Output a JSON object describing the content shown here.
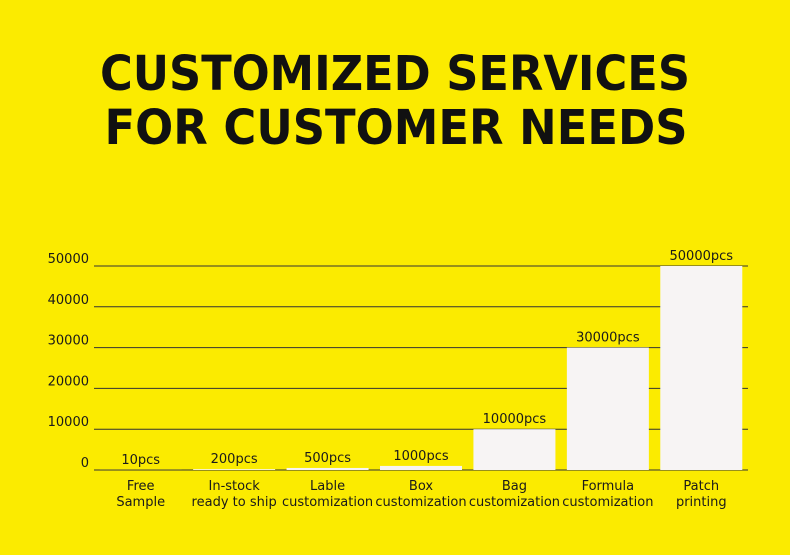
{
  "chart_data": {
    "type": "bar",
    "title": [
      "CUSTOMIZED SERVICES",
      "FOR CUSTOMER NEEDS"
    ],
    "categories": [
      [
        "Free",
        "Sample"
      ],
      [
        "In-stock",
        "ready to ship"
      ],
      [
        "Lable",
        "customization"
      ],
      [
        "Box",
        "customization"
      ],
      [
        "Bag",
        "customization"
      ],
      [
        "Formula",
        "customization"
      ],
      [
        "Patch",
        "printing"
      ]
    ],
    "values": [
      10,
      200,
      500,
      1000,
      10000,
      30000,
      50000
    ],
    "value_labels": [
      "10pcs",
      "200pcs",
      "500pcs",
      "1000pcs",
      "10000pcs",
      "30000pcs",
      "50000pcs"
    ],
    "color": "#f7f4f4",
    "ylim": [
      0,
      50000
    ],
    "yticks": [
      0,
      10000,
      20000,
      30000,
      40000,
      50000
    ],
    "grid": true
  }
}
